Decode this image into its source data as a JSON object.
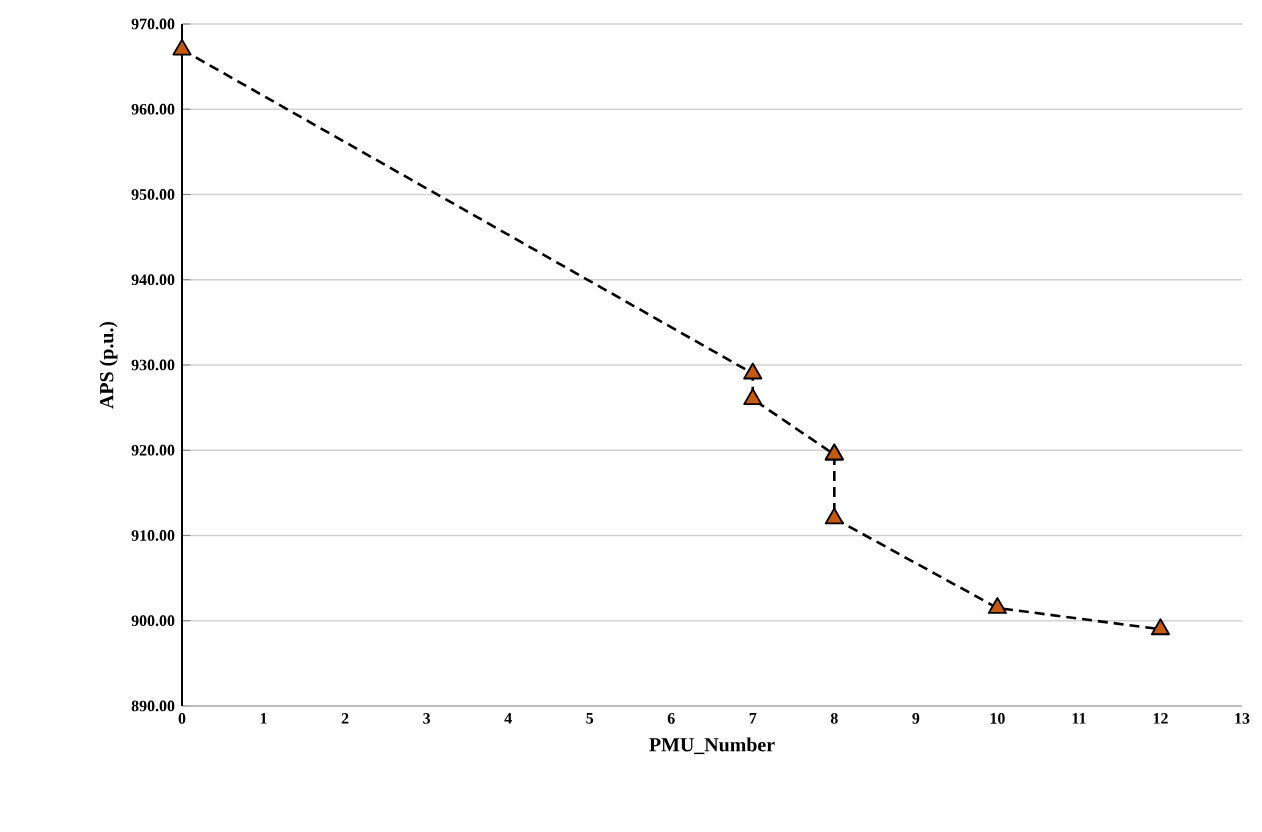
{
  "chart_data": {
    "type": "line",
    "xlabel": "PMU_Number",
    "ylabel": "APS (p.u.)",
    "x": [
      0,
      7,
      7,
      8,
      8,
      8,
      10,
      12
    ],
    "series": [
      {
        "color": "#c55a11",
        "values": [
          967,
          929,
          926,
          919.5,
          919.5,
          912,
          901.5,
          899
        ]
      }
    ],
    "xlim": [
      0,
      13
    ],
    "xticks": [
      0,
      1,
      2,
      3,
      4,
      5,
      6,
      7,
      8,
      9,
      10,
      11,
      12,
      13
    ],
    "ylim": [
      890,
      970
    ],
    "yticks": [
      {
        "value": 890,
        "label": "890.00"
      },
      {
        "value": 900,
        "label": "900.00"
      },
      {
        "value": 910,
        "label": "910.00"
      },
      {
        "value": 920,
        "label": "920.00"
      },
      {
        "value": 930,
        "label": "930.00"
      },
      {
        "value": 940,
        "label": "940.00"
      },
      {
        "value": 950,
        "label": "950.00"
      },
      {
        "value": 960,
        "label": "960.00"
      },
      {
        "value": 970,
        "label": "970.00"
      }
    ],
    "grid": "y",
    "marker": "triangle",
    "line_style": "dashed"
  }
}
